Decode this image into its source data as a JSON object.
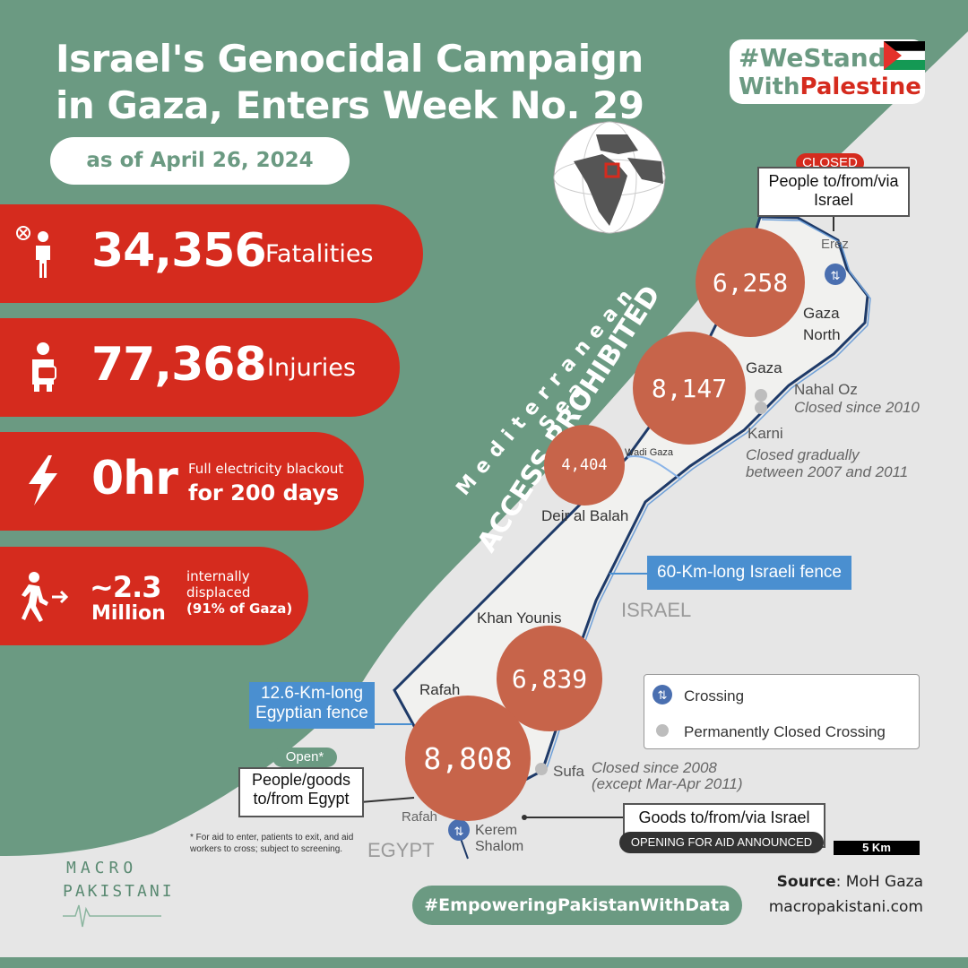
{
  "title_line1": "Israel's Genocidal Campaign",
  "title_line2": "in Gaza, Enters Week No. 29",
  "as_of": "as of April 26, 2024",
  "hashtag": {
    "line1": "#WeStand",
    "line2_a": "With",
    "line2_b": "Palestine"
  },
  "stats": {
    "fatalities": {
      "value": "34,356",
      "label": "Fatalities"
    },
    "injuries": {
      "value": "77,368",
      "label": "Injuries"
    },
    "electricity": {
      "value": "0hr",
      "line1": "Full electricity blackout",
      "line2": "for 200 days"
    },
    "displaced": {
      "value": "~2.3",
      "unit": "Million",
      "note1": "internally",
      "note2": "displaced",
      "note3": "(91% of Gaza)"
    }
  },
  "sea": {
    "name": "Mediterranean Sea",
    "access": "ACCESS PROHIBITED"
  },
  "governorates": [
    {
      "name_l1": "Gaza",
      "name_l2": "North",
      "value": "6,258"
    },
    {
      "name_l1": "Gaza",
      "name_l2": "",
      "value": "8,147"
    },
    {
      "name_l1": "Deir al Balah",
      "name_l2": "",
      "value": "4,404"
    },
    {
      "name_l1": "Khan Younis",
      "name_l2": "",
      "value": "6,839"
    },
    {
      "name_l1": "Rafah",
      "name_l2": "",
      "value": "8,808"
    }
  ],
  "places": {
    "erez": "Erez",
    "nahal_oz": "Nahal Oz",
    "nahal_oz_note": "Closed since 2010",
    "karni": "Karni",
    "karni_note1": "Closed gradually",
    "karni_note2": "between 2007 and 2011",
    "wadi_gaza": "Wadi Gaza",
    "israel": "ISRAEL",
    "egypt": "EGYPT",
    "sufa": "Sufa",
    "sufa_note1": "Closed since  2008",
    "sufa_note2": "(except Mar-Apr 2011)",
    "rafah_crossing": "Rafah",
    "kerem1": "Kerem",
    "kerem2": "Shalom"
  },
  "callouts": {
    "erez_status": "CLOSED",
    "erez_line1": "People to/from/via",
    "erez_line2": "Israel",
    "israeli_fence": "60-Km-long Israeli fence",
    "egyptian_fence1": "12.6-Km-long",
    "egyptian_fence2": "Egyptian fence",
    "rafah_status": "Open*",
    "rafah_line1": "People/goods",
    "rafah_line2": "to/from Egypt",
    "kerem_line1": "Goods to/from/via Israel",
    "kerem_status": "OPENING FOR AID ANNOUNCED",
    "footnote1": "* For aid to enter, patients to exit, and aid",
    "footnote2": "workers to cross; subject to screening."
  },
  "legend": {
    "crossing": "Crossing",
    "closed": "Permanently Closed Crossing"
  },
  "scale": "5 Km",
  "source_label": "Source",
  "source_value": ": MoH Gaza",
  "website": "macropakistani.com",
  "footer_hashtag": "#EmpoweringPakistanWithData",
  "logo": {
    "line1": "MACRO",
    "line2": "PAKISTANI"
  },
  "colors": {
    "green": "#6b9a82",
    "red": "#d52b1e",
    "circle": "#c7644a",
    "blue": "#4a8fd0"
  }
}
